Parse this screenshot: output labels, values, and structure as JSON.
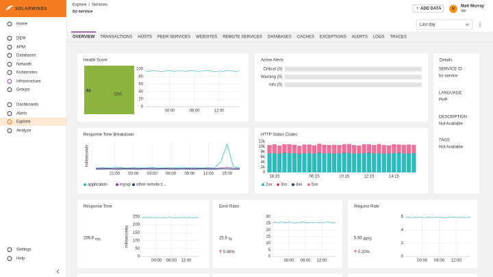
{
  "sidebar": {
    "logo": "SOLARWINDS",
    "items": [
      "Home",
      "DEM",
      "APM",
      "Databases",
      "Network",
      "Kubernetes",
      "Infrastructure",
      "Groups",
      "Dashboards",
      "Alerts",
      "Explore",
      "Analyze",
      "Settings",
      "Help"
    ]
  },
  "header": {
    "breadcrumb": [
      "Explore",
      "/",
      "Services"
    ],
    "title": "bz-service",
    "add_data": "ADD DATA",
    "avatar": "M",
    "user_name": "Matt Murray",
    "user_org": "sw"
  },
  "tabs": [
    "OVERVIEW",
    "TRANSACTIONS",
    "HOSTS",
    "PEER SERVICES",
    "WEBSITES",
    "REMOTE SERVICES",
    "DATABASES",
    "CACHES",
    "EXCEPTIONS",
    "ALERTS",
    "LOGS",
    "TRACES"
  ],
  "time_range": "Last day",
  "health": {
    "title": "Health Score",
    "score": 94,
    "max_label": "/100",
    "chart": {
      "type": "line",
      "color": "#5bc0c8",
      "ylim": [
        0,
        100
      ],
      "yticks": [
        0,
        20,
        40,
        60,
        80,
        100
      ],
      "categories": [
        null,
        null,
        null,
        null,
        null,
        null,
        "00:00",
        null,
        null,
        null,
        null,
        null,
        "06:00",
        null,
        null,
        null,
        null,
        null,
        "12:00",
        null,
        null,
        null,
        null,
        null
      ],
      "values": [
        95,
        94,
        96,
        95,
        93,
        95,
        96,
        94,
        95,
        95,
        94,
        96,
        95,
        94,
        95,
        96,
        95,
        93,
        95,
        94,
        96,
        95,
        94,
        95
      ]
    }
  },
  "alerts": {
    "title": "Active Alerts",
    "rows": [
      "Critical (0)",
      "Warning (0)",
      "Info (0)"
    ]
  },
  "details": {
    "title": "Details",
    "fields": [
      {
        "label": "SERVICE ID",
        "value": "bz-service"
      },
      {
        "label": "LANGUAGE",
        "value": "PHP"
      },
      {
        "label": "DESCRIPTION",
        "value": "Not Available"
      },
      {
        "label": "TAGS",
        "value": "Not Available"
      }
    ]
  },
  "breakdown": {
    "title": "Response Time Breakdown",
    "chart": {
      "type": "line",
      "ylabel": "milliseconds",
      "ylim": [
        0,
        100
      ],
      "categories": [
        null,
        null,
        null,
        "21:00",
        null,
        null,
        "00:00",
        null,
        null,
        "03:00",
        null,
        null,
        "06:00",
        null,
        null,
        "09:00",
        null,
        null,
        "12:00",
        null,
        null,
        "15:00",
        null,
        null
      ],
      "series": [
        {
          "name": "application",
          "color": "#2bbbbd",
          "values": [
            6,
            7,
            6,
            8,
            7,
            6,
            7,
            6,
            7,
            8,
            6,
            7,
            6,
            7,
            8,
            6,
            7,
            6,
            7,
            6,
            30,
            92,
            10,
            7
          ]
        },
        {
          "name": "mysql",
          "color": "#8e3f9b",
          "values": [
            4,
            5,
            4,
            4,
            5,
            4,
            5,
            4,
            4,
            5,
            4,
            4,
            5,
            4,
            4,
            5,
            4,
            4,
            5,
            4,
            6,
            8,
            5,
            4
          ]
        },
        {
          "name": "other remote c...",
          "color": "#2d3a7a",
          "values": [
            2,
            2,
            3,
            2,
            2,
            3,
            2,
            2,
            3,
            2,
            2,
            3,
            2,
            2,
            3,
            2,
            2,
            3,
            2,
            2,
            3,
            3,
            2,
            2
          ]
        }
      ]
    }
  },
  "http": {
    "title": "HTTP Status Codes",
    "chart": {
      "type": "bar",
      "ylim": [
        0,
        12000
      ],
      "yticks": [
        0,
        {
          "value": 2000,
          "label": "2k"
        },
        {
          "value": 4000,
          "label": "4k"
        },
        {
          "value": 6000,
          "label": "6k"
        },
        {
          "value": 8000,
          "label": "8k"
        },
        {
          "value": 10000,
          "label": "10k"
        },
        {
          "value": 12000,
          "label": "12k"
        }
      ],
      "categories": [
        null,
        "18:15",
        null,
        null,
        null,
        null,
        null,
        null,
        null,
        "06:15",
        null,
        null,
        null,
        null,
        null,
        "10:15",
        null,
        null,
        null,
        null,
        "12:15",
        null,
        null,
        null,
        null,
        "14:15",
        null,
        null,
        null,
        null
      ],
      "series": [
        {
          "name": "2xx",
          "color": "#2bbbbd",
          "values": [
            7400,
            7500,
            7300,
            7600,
            7400,
            7500,
            7200,
            7400,
            7500,
            7300,
            7600,
            7400,
            7500,
            7300,
            7400,
            7600,
            7500,
            7400,
            7300,
            7500,
            7600,
            7400,
            7500,
            7300,
            7400,
            7500,
            7600,
            7400,
            7300,
            7500
          ]
        },
        {
          "name": "3xx",
          "color": "#d63d6a",
          "values": [
            150,
            150,
            150,
            150,
            150,
            150,
            150,
            150,
            150,
            150,
            150,
            150,
            150,
            150,
            150,
            150,
            150,
            150,
            150,
            150,
            150,
            150,
            150,
            150,
            150,
            150,
            150,
            150,
            150,
            150
          ]
        },
        {
          "name": "4xx",
          "color": "#2d3a7a",
          "values": [
            0,
            0,
            0,
            0,
            0,
            0,
            0,
            0,
            0,
            0,
            0,
            0,
            0,
            0,
            0,
            0,
            0,
            0,
            0,
            0,
            0,
            0,
            0,
            0,
            0,
            0,
            0,
            0,
            0,
            0
          ]
        },
        {
          "name": "5xx",
          "color": "#ee6f9a",
          "values": [
            3100,
            3300,
            3000,
            3200,
            3400,
            3100,
            3000,
            3300,
            3200,
            3100,
            3400,
            3200,
            3000,
            3300,
            3100,
            3200,
            3400,
            3100,
            3000,
            3300,
            3200,
            3100,
            3400,
            3200,
            3000,
            3300,
            3100,
            3200,
            3400,
            3100
          ]
        }
      ]
    }
  },
  "response_time": {
    "title": "Response Time",
    "value": "266.8",
    "unit": "ms",
    "chart": {
      "type": "line",
      "color": "#5bc0c8",
      "ylabel": "milliseconds",
      "ylim": [
        0,
        250
      ],
      "yticks": [
        0,
        50,
        100,
        150,
        200,
        250
      ],
      "categories": [
        null,
        null,
        null,
        null,
        null,
        null,
        "00:00",
        null,
        null,
        null,
        null,
        null,
        "06:00",
        null,
        null,
        null,
        null,
        null,
        "12:00",
        null,
        null,
        null,
        null,
        null
      ],
      "values": [
        244,
        246,
        243,
        247,
        245,
        244,
        246,
        245,
        243,
        246,
        244,
        247,
        245,
        243,
        246,
        244,
        245,
        247,
        244,
        246,
        245,
        243,
        246,
        245
      ]
    }
  },
  "error_ratio": {
    "title": "Error Ratio",
    "value": "25.8",
    "unit": "%",
    "change": "0.96%",
    "chart": {
      "type": "line",
      "color": "#5bc0c8",
      "ylim": [
        0,
        30
      ],
      "yticks": [
        0,
        5,
        10,
        15,
        20,
        25,
        30
      ],
      "categories": [
        null,
        null,
        null,
        null,
        null,
        null,
        "00:00",
        null,
        null,
        null,
        null,
        null,
        "06:00",
        null,
        null,
        null,
        null,
        null,
        "12:00",
        null,
        null,
        null,
        null,
        null
      ],
      "values": [
        25.6,
        25.9,
        25.4,
        26.1,
        25.7,
        25.5,
        26.0,
        25.8,
        25.3,
        25.9,
        25.6,
        26.2,
        25.7,
        25.4,
        25.9,
        25.6,
        26.0,
        25.5,
        25.8,
        25.6,
        26.1,
        25.7,
        25.4,
        25.9
      ]
    }
  },
  "request_rate": {
    "title": "Request Rate",
    "value": "5.93",
    "unit": "RPS",
    "change": "0.20%",
    "chart": {
      "type": "line",
      "color": "#5bc0c8",
      "ylim": [
        0,
        6
      ],
      "yticks": [
        0,
        2,
        4,
        6
      ],
      "categories": [
        null,
        null,
        null,
        null,
        null,
        null,
        "00:00",
        null,
        null,
        null,
        null,
        null,
        "06:00",
        null,
        null,
        null,
        null,
        null,
        "12:00",
        null,
        null,
        null,
        null,
        null
      ],
      "values": [
        5.9,
        5.95,
        5.85,
        5.92,
        5.88,
        5.97,
        5.9,
        5.86,
        5.94,
        5.91,
        5.87,
        5.96,
        5.9,
        5.93,
        5.85,
        5.92,
        5.89,
        5.95,
        5.88,
        5.91,
        5.94,
        5.87,
        5.9,
        5.93
      ]
    }
  }
}
